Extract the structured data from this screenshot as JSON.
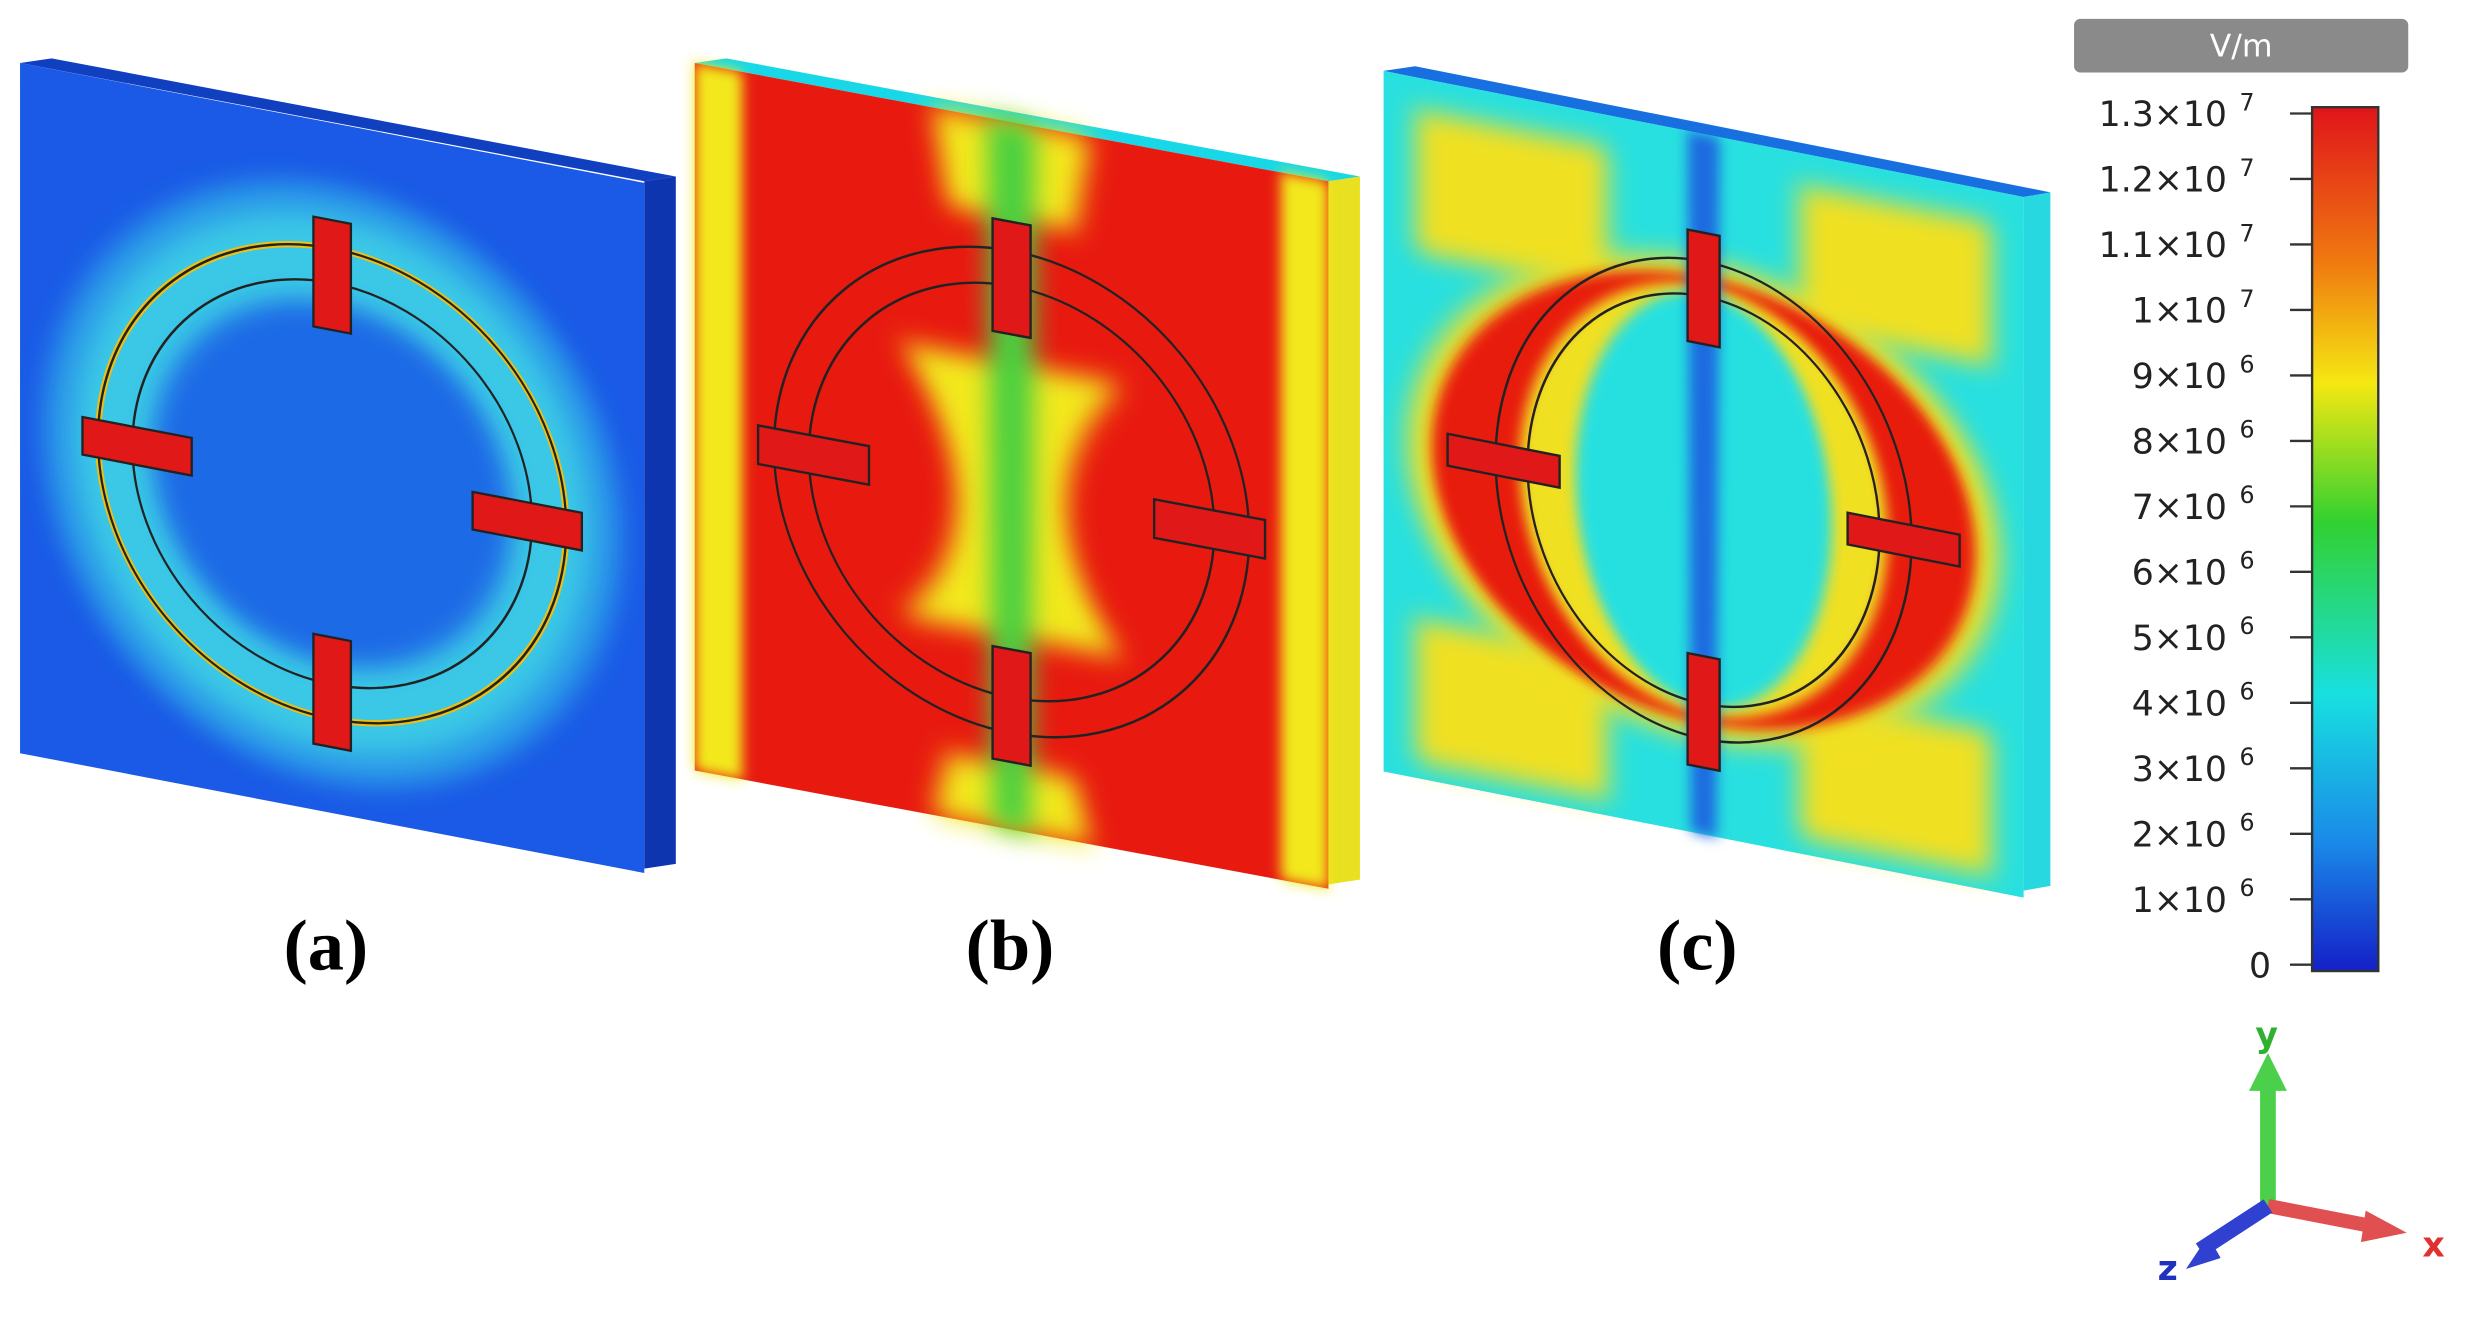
{
  "panels": [
    {
      "label": "(a)"
    },
    {
      "label": "(b)"
    },
    {
      "label": "(c)"
    }
  ],
  "colorbar": {
    "unit": "V/m",
    "range": [
      0,
      13000000
    ],
    "ticks": [
      {
        "value": 13000000,
        "mantissa": "1.3×10",
        "exponent": "7"
      },
      {
        "value": 12000000,
        "mantissa": "1.2×10",
        "exponent": "7"
      },
      {
        "value": 11000000,
        "mantissa": "1.1×10",
        "exponent": "7"
      },
      {
        "value": 10000000,
        "mantissa": "1×10",
        "exponent": "7"
      },
      {
        "value": 9000000,
        "mantissa": "9×10",
        "exponent": "6"
      },
      {
        "value": 8000000,
        "mantissa": "8×10",
        "exponent": "6"
      },
      {
        "value": 7000000,
        "mantissa": "7×10",
        "exponent": "6"
      },
      {
        "value": 6000000,
        "mantissa": "6×10",
        "exponent": "6"
      },
      {
        "value": 5000000,
        "mantissa": "5×10",
        "exponent": "6"
      },
      {
        "value": 4000000,
        "mantissa": "4×10",
        "exponent": "6"
      },
      {
        "value": 3000000,
        "mantissa": "3×10",
        "exponent": "6"
      },
      {
        "value": 2000000,
        "mantissa": "2×10",
        "exponent": "6"
      },
      {
        "value": 1000000,
        "mantissa": "1×10",
        "exponent": "6"
      },
      {
        "value": 0,
        "mantissa": "0"
      }
    ]
  },
  "axes": {
    "x": "x",
    "y": "y",
    "z": "z"
  }
}
